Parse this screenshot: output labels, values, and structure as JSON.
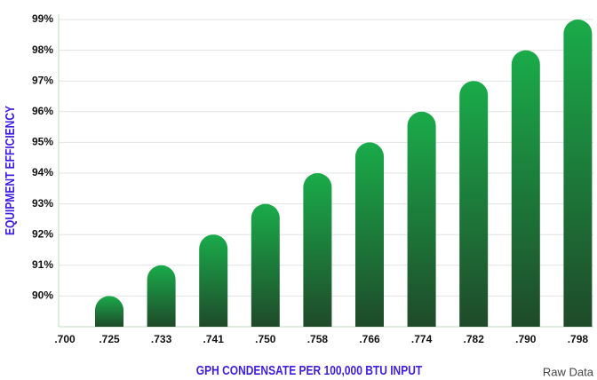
{
  "chart_data": {
    "type": "bar",
    "x_label": "GPH CONDENSATE PER 100,000 BTU INPUT",
    "y_label": "EQUIPMENT EFFICIENCY",
    "note": "Raw Data",
    "categories": [
      ".700",
      ".725",
      ".733",
      ".741",
      ".750",
      ".758",
      ".766",
      ".774",
      ".782",
      ".790",
      ".798"
    ],
    "values": [
      null,
      90,
      91,
      92,
      93,
      94,
      95,
      96,
      97,
      98,
      99
    ],
    "color": "#1aab4a",
    "ylim": [
      89,
      99
    ],
    "yticks": [
      {
        "value": 90,
        "label": "90%"
      },
      {
        "value": 91,
        "label": "91%"
      },
      {
        "value": 92,
        "label": "92%"
      },
      {
        "value": 93,
        "label": "93%"
      },
      {
        "value": 94,
        "label": "94%"
      },
      {
        "value": 95,
        "label": "95%"
      },
      {
        "value": 96,
        "label": "96%"
      },
      {
        "value": 97,
        "label": "97%"
      },
      {
        "value": 98,
        "label": "98%"
      },
      {
        "value": 99,
        "label": "99%"
      }
    ],
    "grid": true
  }
}
